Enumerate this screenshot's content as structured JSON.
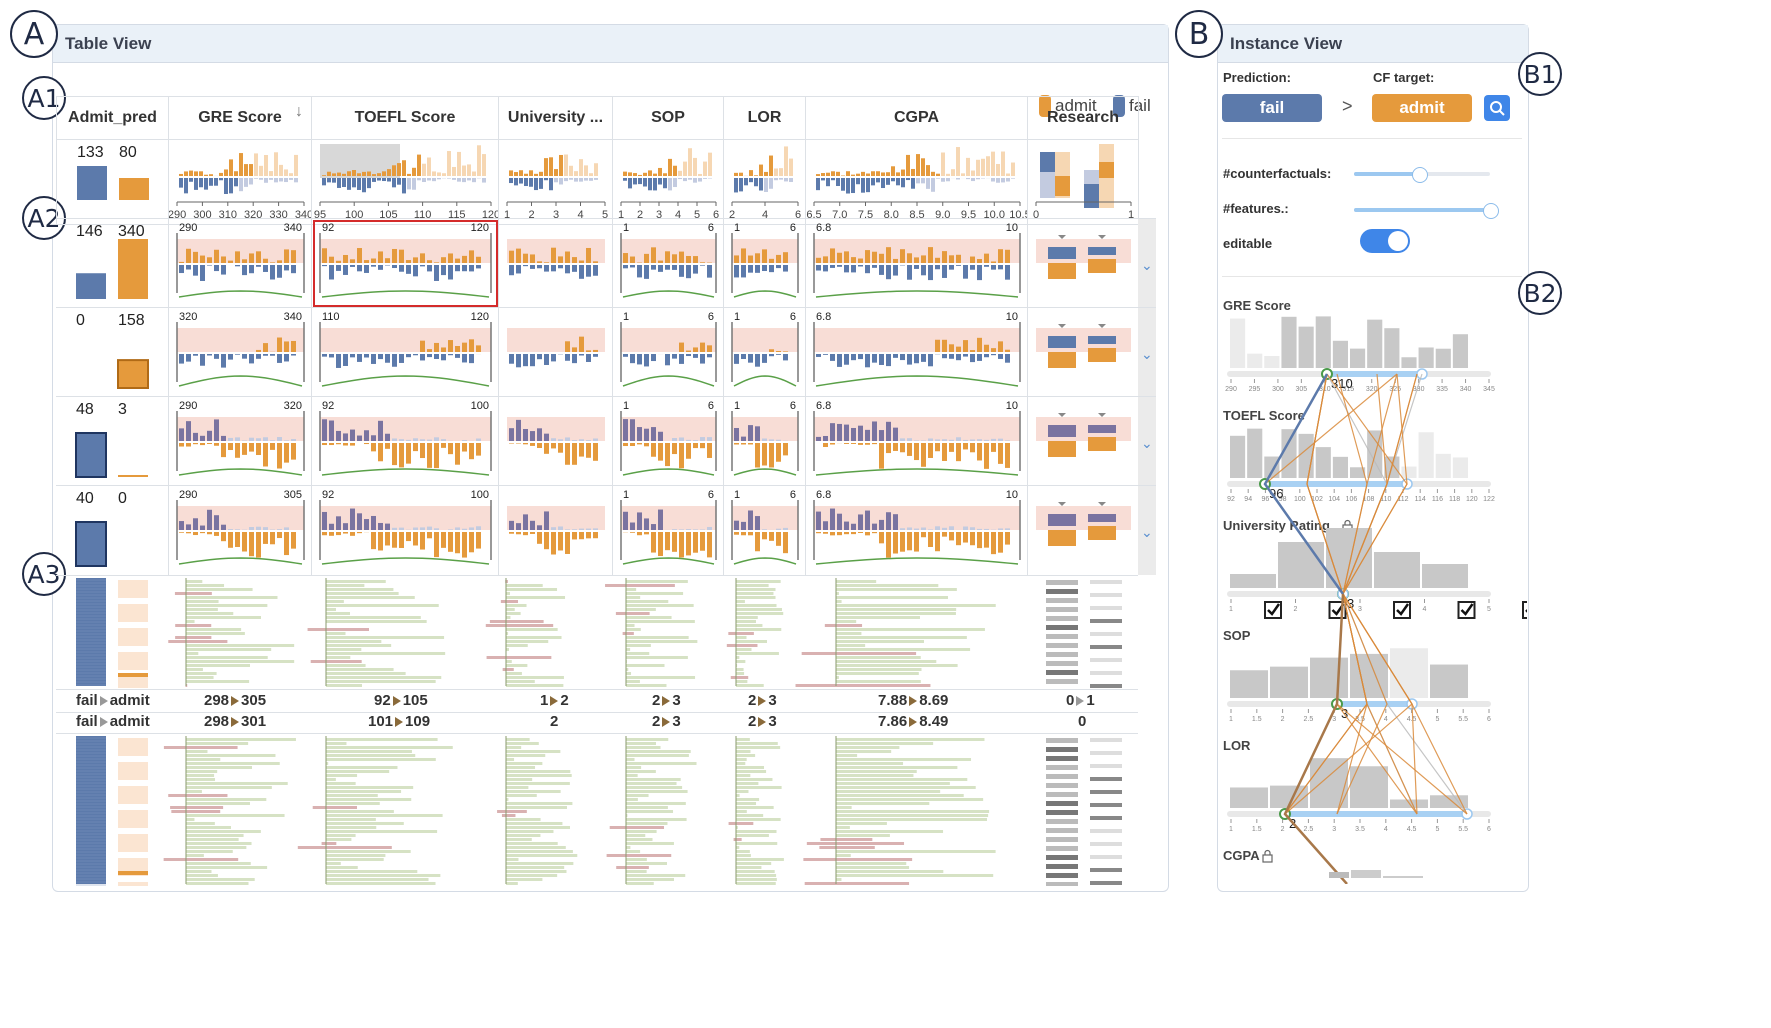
{
  "labels": {
    "a": "A",
    "a1": "A1",
    "a2": "A2",
    "a3": "A3",
    "b": "B",
    "b1": "B1",
    "b2": "B2"
  },
  "table_view": {
    "title": "Table View",
    "legend": {
      "admit": "admit",
      "fail": "fail",
      "admit_color": "#e59a3c",
      "fail_color": "#5c7aab"
    },
    "columns": [
      "Admit_pred",
      "GRE Score",
      "TOEFL Score",
      "University ...",
      "SOP",
      "LOR",
      "CGPA",
      "Research"
    ],
    "overview_counts": {
      "fail": "133",
      "admit": "80"
    },
    "axis_ticks": {
      "gre": [
        "290",
        "300",
        "310",
        "320",
        "330",
        "340"
      ],
      "toefl": [
        "95",
        "100",
        "105",
        "110",
        "115",
        "120"
      ],
      "univ": [
        "1",
        "2",
        "3",
        "4",
        "5"
      ],
      "sop": [
        "1",
        "2",
        "3",
        "4",
        "5",
        "6"
      ],
      "lor": [
        "2",
        "4",
        "6"
      ],
      "cgpa": [
        "6.5",
        "7.0",
        "7.5",
        "8.0",
        "8.5",
        "9.0",
        "9.5",
        "10.0",
        "10.5"
      ],
      "research": [
        "0",
        "1"
      ]
    },
    "rows": [
      {
        "count_fail": "146",
        "count_admit": "340",
        "gre_range": [
          "290",
          "340"
        ],
        "toefl_range": [
          "92",
          "120"
        ],
        "sop_range": [
          "1",
          "6"
        ],
        "lor_range": [
          "1",
          "6"
        ],
        "cgpa_range": [
          "6.8",
          "10"
        ]
      },
      {
        "count_fail": "0",
        "count_admit": "158",
        "gre_range": [
          "320",
          "340"
        ],
        "toefl_range": [
          "110",
          "120"
        ],
        "sop_range": [
          "1",
          "6"
        ],
        "lor_range": [
          "1",
          "6"
        ],
        "cgpa_range": [
          "6.8",
          "10"
        ]
      },
      {
        "count_fail": "48",
        "count_admit": "3",
        "gre_range": [
          "290",
          "320"
        ],
        "toefl_range": [
          "92",
          "100"
        ],
        "sop_range": [
          "1",
          "6"
        ],
        "lor_range": [
          "1",
          "6"
        ],
        "cgpa_range": [
          "6.8",
          "10"
        ]
      },
      {
        "count_fail": "40",
        "count_admit": "0",
        "gre_range": [
          "290",
          "305"
        ],
        "toefl_range": [
          "92",
          "100"
        ],
        "sop_range": [
          "1",
          "6"
        ],
        "lor_range": [
          "1",
          "6"
        ],
        "cgpa_range": [
          "6.8",
          "10"
        ]
      }
    ],
    "summary_rows": [
      {
        "pred_from": "fail",
        "pred_to": "admit",
        "gre_from": "298",
        "gre_to": "305",
        "toefl_from": "92",
        "toefl_to": "105",
        "univ_from": "1",
        "univ_to": "2",
        "sop_from": "2",
        "sop_to": "3",
        "lor_from": "2",
        "lor_to": "3",
        "cgpa_from": "7.88",
        "cgpa_to": "8.69",
        "res_from": "0",
        "res_to": "1"
      },
      {
        "pred_from": "fail",
        "pred_to": "admit",
        "gre_from": "298",
        "gre_to": "301",
        "toefl_from": "101",
        "toefl_to": "109",
        "univ": "2",
        "sop_from": "2",
        "sop_to": "3",
        "lor_from": "2",
        "lor_to": "3",
        "cgpa_from": "7.86",
        "cgpa_to": "8.49",
        "res": "0"
      }
    ]
  },
  "instance_view": {
    "title": "Instance View",
    "prediction_label": "Prediction:",
    "cf_target_label": "CF target:",
    "prediction": "fail",
    "cf_target": "admit",
    "arrow": ">",
    "counterfactuals_label": "#counterfactuals:",
    "counterfactuals_level": 0.48,
    "features_label": "#features.:",
    "features_level": 1.0,
    "editable_label": "editable",
    "editable": true,
    "features": [
      {
        "name": "GRE Score",
        "value": "310",
        "ticks": [
          "290",
          "295",
          "300",
          "305",
          "310",
          "315",
          "320",
          "325",
          "330",
          "335",
          "340",
          "345"
        ]
      },
      {
        "name": "TOEFL Score",
        "value": "96",
        "ticks": [
          "92",
          "94",
          "96",
          "98",
          "100",
          "102",
          "104",
          "106",
          "108",
          "110",
          "112",
          "114",
          "116",
          "118",
          "120",
          "122"
        ]
      },
      {
        "name": "University Rating",
        "value": "3",
        "ticks": [
          "1",
          "2",
          "3",
          "4",
          "5"
        ]
      },
      {
        "name": "SOP",
        "value": "3",
        "ticks": [
          "1",
          "1.5",
          "2",
          "2.5",
          "3",
          "3.5",
          "4",
          "4.5",
          "5",
          "5.5",
          "6"
        ]
      },
      {
        "name": "LOR",
        "value": "2",
        "ticks": [
          "1",
          "1.5",
          "2",
          "2.5",
          "3",
          "3.5",
          "4",
          "4.5",
          "5",
          "5.5",
          "6"
        ]
      },
      {
        "name": "CGPA",
        "value": "",
        "ticks": []
      }
    ]
  }
}
